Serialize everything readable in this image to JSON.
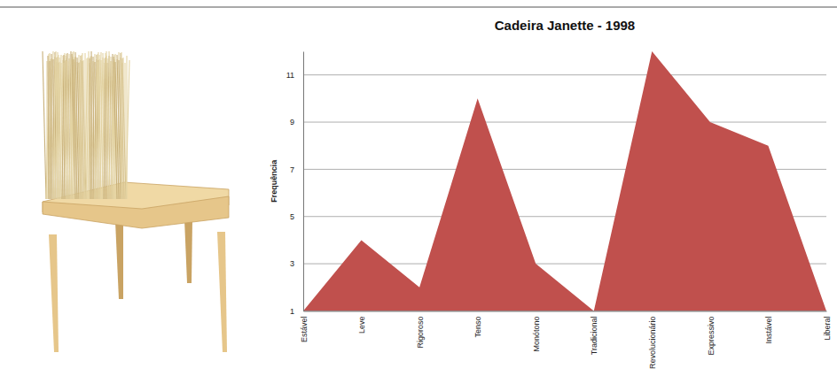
{
  "chart_data": {
    "type": "area",
    "title": "Cadeira Janette - 1998",
    "ylabel": "Frequência",
    "categories": [
      "Estável",
      "Leve",
      "Rigoroso",
      "Tenso",
      "Monótono",
      "Tradicional",
      "Revolucionário",
      "Expressivo",
      "Instável",
      "Liberal"
    ],
    "values": [
      1,
      4,
      2,
      10,
      3,
      1,
      12,
      9,
      8,
      1
    ],
    "color": "#c0504d",
    "ylim": [
      1,
      12
    ],
    "yticks": [
      1,
      3,
      5,
      7,
      9,
      11
    ],
    "grid": true
  }
}
